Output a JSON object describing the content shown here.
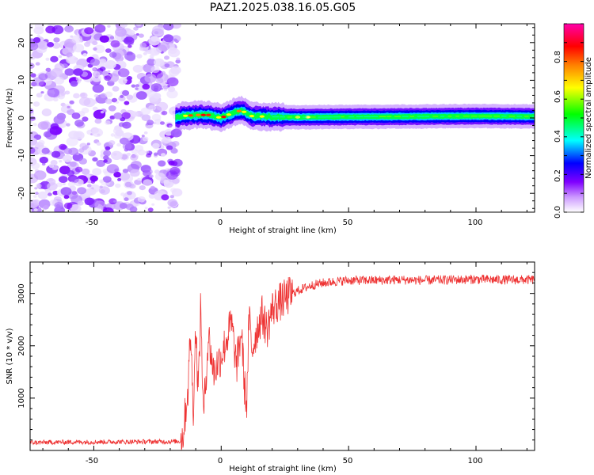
{
  "title": "PAZ1.2025.038.16.05.G05",
  "chart_data": [
    {
      "type": "heatmap",
      "xlabel": "Height of straight line (km)",
      "ylabel": "Frequency (Hz)",
      "xlim": [
        -75,
        123
      ],
      "ylim": [
        -25,
        25
      ],
      "xticks": [
        -50,
        0,
        50,
        100
      ],
      "yticks": [
        -20,
        -10,
        0,
        10,
        20
      ],
      "xtick_labels": [
        "-50",
        "0",
        "50",
        "100"
      ],
      "ytick_labels": [
        "-20",
        "-10",
        "0",
        "10",
        "20"
      ],
      "noise_region_x": [
        -75,
        -18
      ],
      "signal_start_x": -18,
      "colorbar": {
        "label": "Normalized spectral amplitude",
        "range": [
          0.0,
          1.0
        ],
        "ticks": [
          0.0,
          0.2,
          0.4,
          0.6,
          0.8
        ],
        "tick_labels": [
          "0.0",
          "0.2",
          "0.4",
          "0.6",
          "0.8"
        ],
        "colormap": [
          "#ffffff",
          "#cc99ff",
          "#8000ff",
          "#0000ff",
          "#00ffff",
          "#00ff00",
          "#ffff00",
          "#ff8000",
          "#ff0000",
          "#ff00aa"
        ]
      },
      "line_center": {
        "x": [
          -18,
          -15,
          -10,
          -5,
          0,
          5,
          8,
          12,
          20,
          30,
          50,
          80,
          100,
          123
        ],
        "y": [
          0,
          0.5,
          0.8,
          0.8,
          0,
          1.5,
          2,
          0.5,
          0.3,
          0.2,
          0.3,
          0.4,
          0.5,
          0.4
        ]
      }
    },
    {
      "type": "line",
      "xlabel": "Height of straight line (km)",
      "ylabel": "SNR (10 * v/v)",
      "xlim": [
        -75,
        123
      ],
      "ylim": [
        0,
        3600
      ],
      "xticks": [
        -50,
        0,
        50,
        100
      ],
      "yticks": [
        1000,
        2000,
        3000
      ],
      "xtick_labels": [
        "-50",
        "0",
        "50",
        "100"
      ],
      "ytick_labels": [
        "1000",
        "2000",
        "3000"
      ],
      "series": [
        {
          "color": "#ee3333",
          "x": [
            -75,
            -60,
            -40,
            -20,
            -16,
            -15,
            -13,
            -12,
            -11,
            -10,
            -9,
            -8,
            -7,
            -5,
            -3,
            0,
            2,
            4,
            6,
            8,
            9,
            10,
            11,
            12,
            14,
            16,
            18,
            20,
            22,
            25,
            28,
            30,
            35,
            40,
            45,
            50,
            60,
            70,
            80,
            90,
            100,
            110,
            123
          ],
          "y": [
            150,
            160,
            165,
            170,
            175,
            300,
            1200,
            2300,
            700,
            2400,
            1100,
            2800,
            600,
            2200,
            1500,
            1800,
            2100,
            2450,
            1600,
            2300,
            1300,
            850,
            2600,
            1900,
            2300,
            2600,
            2300,
            2700,
            2800,
            2900,
            3000,
            3050,
            3150,
            3200,
            3230,
            3250,
            3250,
            3260,
            3250,
            3260,
            3270,
            3260,
            3260
          ]
        }
      ]
    }
  ]
}
